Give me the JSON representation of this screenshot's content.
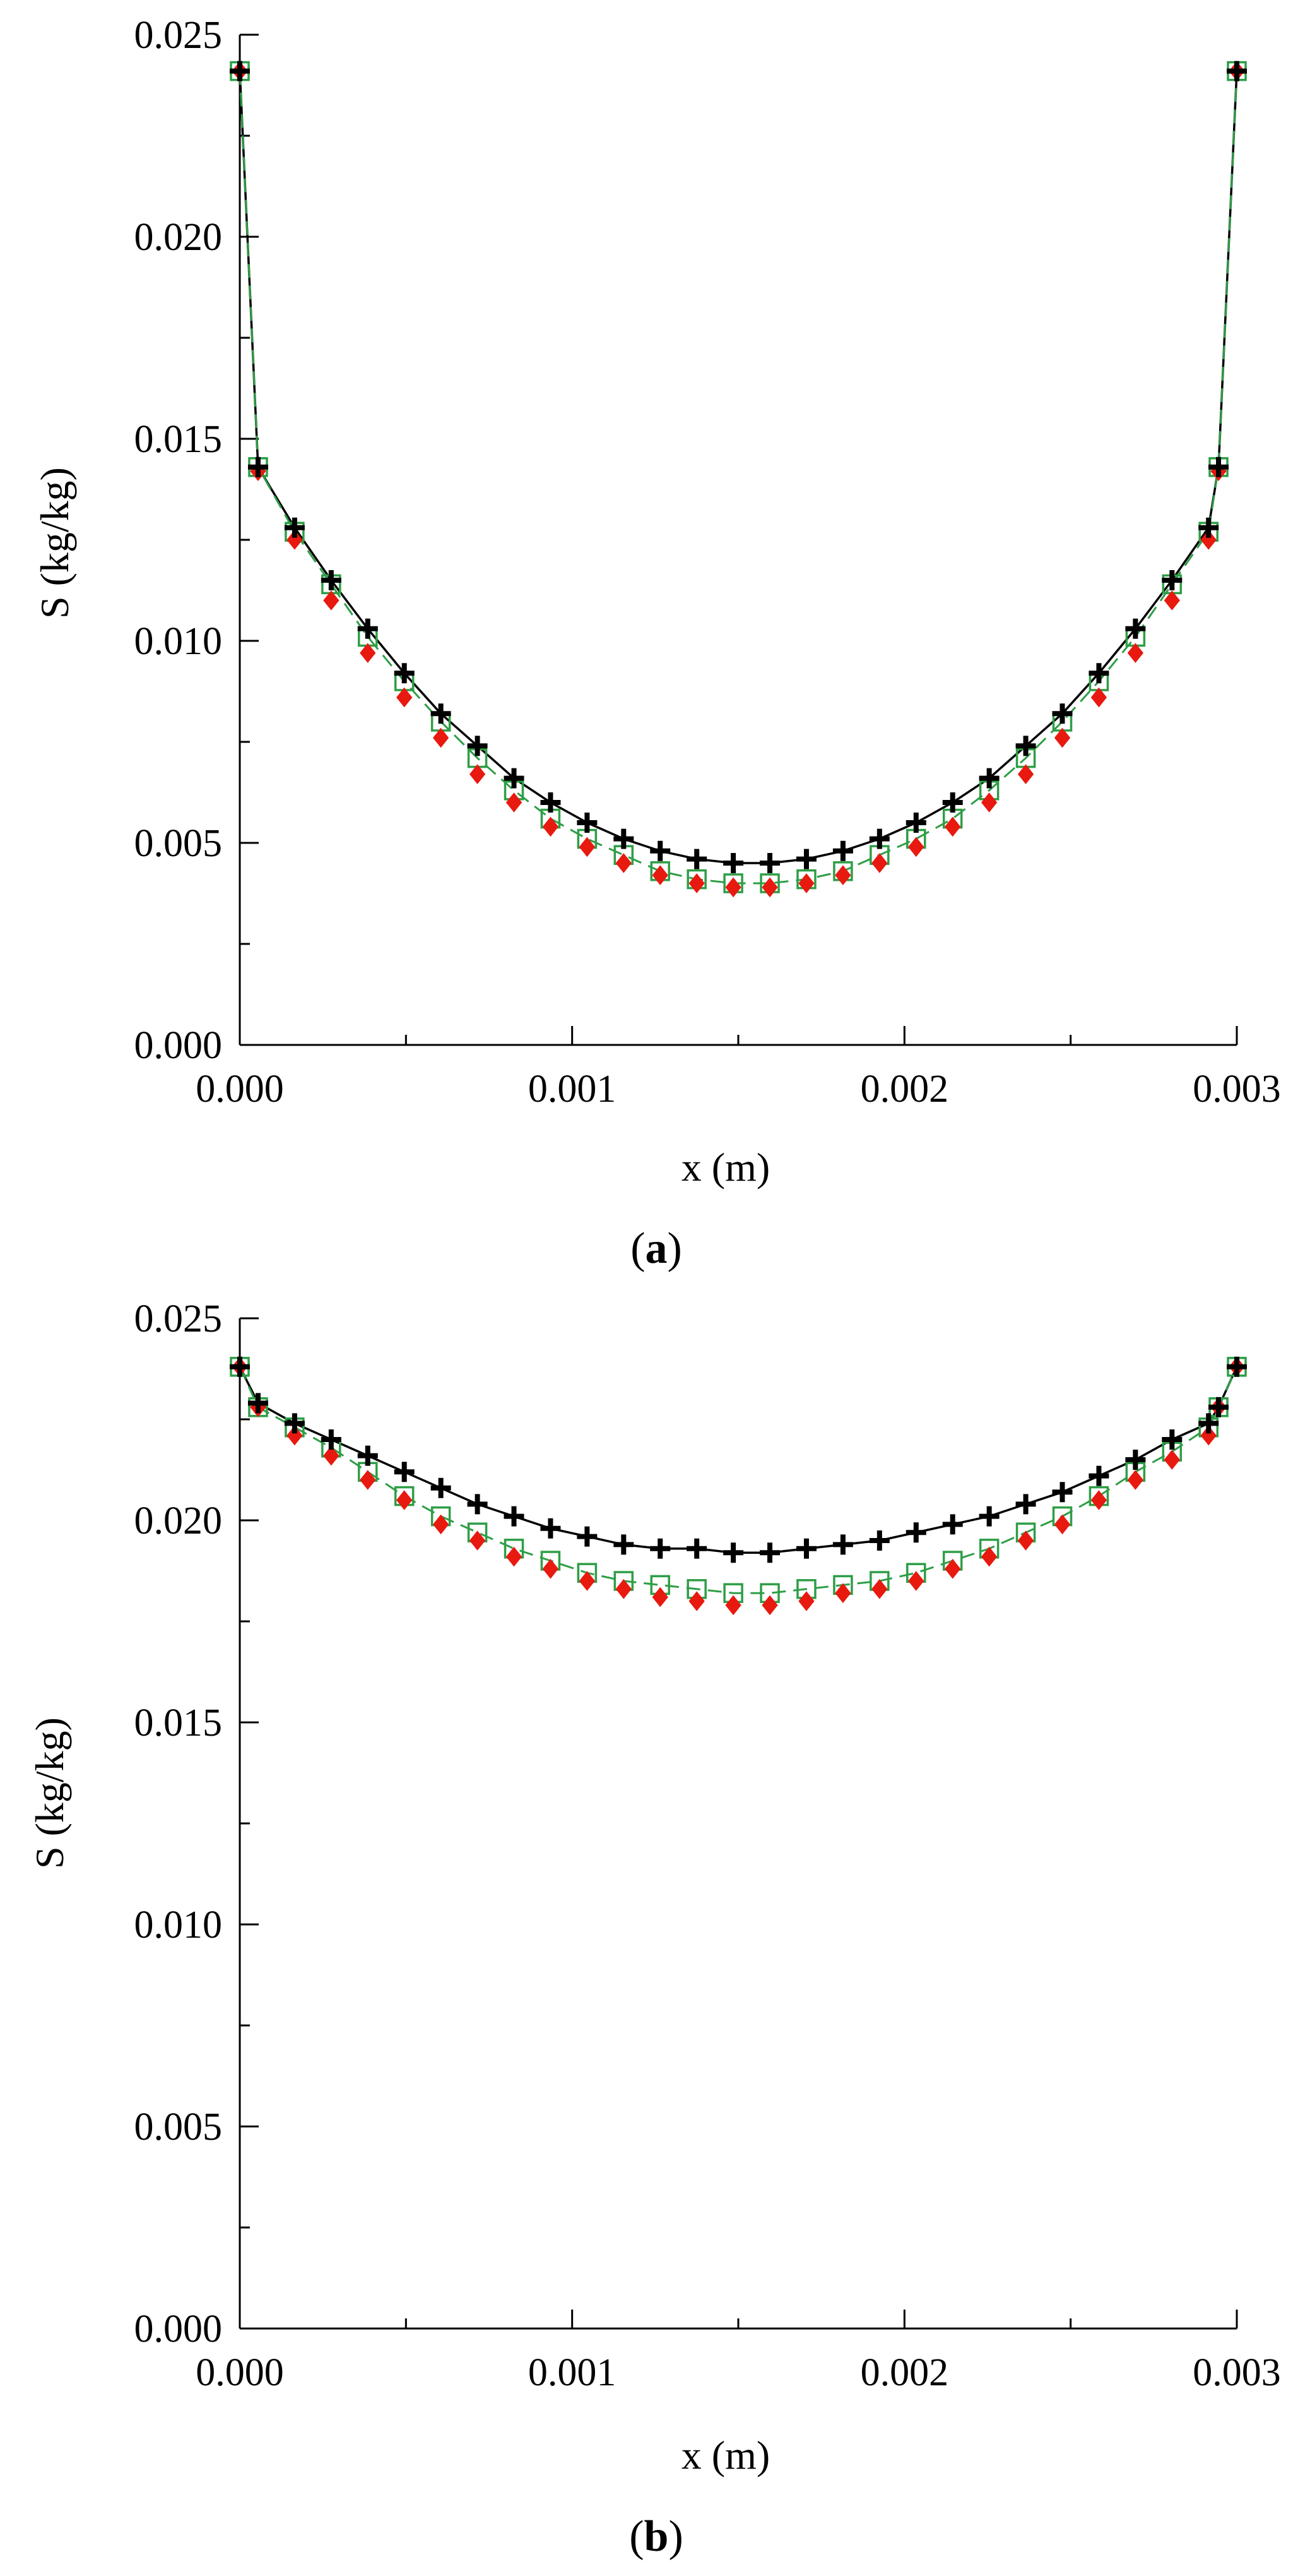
{
  "figure": {
    "panels": [
      {
        "caption_open": "(",
        "caption_letter": "a",
        "caption_close": ")"
      },
      {
        "caption_open": "(",
        "caption_letter": "b",
        "caption_close": ")"
      }
    ]
  },
  "colors": {
    "black_series": "#000000",
    "green_series": "#2e9e46",
    "red_series": "#e8190f",
    "axis": "#000000"
  },
  "chart_data": [
    {
      "type": "line",
      "panel": "a",
      "xlabel": "x (m)",
      "ylabel": "S (kg/kg)",
      "xlim": [
        0,
        0.003
      ],
      "ylim": [
        0,
        0.025
      ],
      "xticks": [
        {
          "value": 0,
          "label": "0.000"
        },
        {
          "value": 0.001,
          "label": "0.001"
        },
        {
          "value": 0.002,
          "label": "0.002"
        },
        {
          "value": 0.003,
          "label": "0.003"
        }
      ],
      "yticks": [
        {
          "value": 0,
          "label": "0.000"
        },
        {
          "value": 0.005,
          "label": "0.005"
        },
        {
          "value": 0.01,
          "label": "0.010"
        },
        {
          "value": 0.015,
          "label": "0.015"
        },
        {
          "value": 0.02,
          "label": "0.020"
        },
        {
          "value": 0.025,
          "label": "0.025"
        }
      ],
      "x": [
        0,
        5.5e-05,
        0.000165,
        0.000275,
        0.000385,
        0.000495,
        0.000605,
        0.000715,
        0.000825,
        0.000935,
        0.001045,
        0.001155,
        0.001265,
        0.001375,
        0.001485,
        0.001595,
        0.001705,
        0.001815,
        0.001925,
        0.002035,
        0.002145,
        0.002255,
        0.002365,
        0.002475,
        0.002585,
        0.002695,
        0.002805,
        0.002915,
        0.002945,
        0.003
      ],
      "series": [
        {
          "name": "black-plus",
          "marker": "plus",
          "line": "solid",
          "values": [
            0.0241,
            0.0143,
            0.0128,
            0.0115,
            0.0103,
            0.0092,
            0.0082,
            0.0074,
            0.0066,
            0.006,
            0.0055,
            0.0051,
            0.0048,
            0.0046,
            0.0045,
            0.0045,
            0.0046,
            0.0048,
            0.0051,
            0.0055,
            0.006,
            0.0066,
            0.0074,
            0.0082,
            0.0092,
            0.0103,
            0.0115,
            0.0128,
            0.0143,
            0.0241
          ]
        },
        {
          "name": "green-square",
          "marker": "square",
          "line": "dashed",
          "values": [
            0.0241,
            0.0143,
            0.0127,
            0.0114,
            0.0101,
            0.009,
            0.008,
            0.0071,
            0.0063,
            0.0056,
            0.0051,
            0.0047,
            0.0043,
            0.0041,
            0.004,
            0.004,
            0.0041,
            0.0043,
            0.0047,
            0.0051,
            0.0056,
            0.0063,
            0.0071,
            0.008,
            0.009,
            0.0101,
            0.0114,
            0.0127,
            0.0143,
            0.0241
          ]
        },
        {
          "name": "red-diamond",
          "marker": "diamond",
          "line": "none",
          "values": [
            0.0241,
            0.0142,
            0.0125,
            0.011,
            0.0097,
            0.0086,
            0.0076,
            0.0067,
            0.006,
            0.0054,
            0.0049,
            0.0045,
            0.0042,
            0.004,
            0.0039,
            0.0039,
            0.004,
            0.0042,
            0.0045,
            0.0049,
            0.0054,
            0.006,
            0.0067,
            0.0076,
            0.0086,
            0.0097,
            0.011,
            0.0125,
            0.0142,
            0.0241
          ]
        }
      ]
    },
    {
      "type": "line",
      "panel": "b",
      "xlabel": "x (m)",
      "ylabel": "S (kg/kg)",
      "xlim": [
        0,
        0.003
      ],
      "ylim": [
        0,
        0.025
      ],
      "xticks": [
        {
          "value": 0,
          "label": "0.000"
        },
        {
          "value": 0.001,
          "label": "0.001"
        },
        {
          "value": 0.002,
          "label": "0.002"
        },
        {
          "value": 0.003,
          "label": "0.003"
        }
      ],
      "yticks": [
        {
          "value": 0,
          "label": "0.000"
        },
        {
          "value": 0.005,
          "label": "0.005"
        },
        {
          "value": 0.01,
          "label": "0.010"
        },
        {
          "value": 0.015,
          "label": "0.015"
        },
        {
          "value": 0.02,
          "label": "0.020"
        },
        {
          "value": 0.025,
          "label": "0.025"
        }
      ],
      "x": [
        0,
        5.5e-05,
        0.000165,
        0.000275,
        0.000385,
        0.000495,
        0.000605,
        0.000715,
        0.000825,
        0.000935,
        0.001045,
        0.001155,
        0.001265,
        0.001375,
        0.001485,
        0.001595,
        0.001705,
        0.001815,
        0.001925,
        0.002035,
        0.002145,
        0.002255,
        0.002365,
        0.002475,
        0.002585,
        0.002695,
        0.002805,
        0.002915,
        0.002945,
        0.003
      ],
      "series": [
        {
          "name": "black-plus",
          "marker": "plus",
          "line": "solid",
          "values": [
            0.0238,
            0.0229,
            0.0224,
            0.022,
            0.0216,
            0.0212,
            0.0208,
            0.0204,
            0.0201,
            0.0198,
            0.0196,
            0.0194,
            0.0193,
            0.0193,
            0.0192,
            0.0192,
            0.0193,
            0.0194,
            0.0195,
            0.0197,
            0.0199,
            0.0201,
            0.0204,
            0.0207,
            0.0211,
            0.0215,
            0.022,
            0.0224,
            0.0228,
            0.0238
          ]
        },
        {
          "name": "green-square",
          "marker": "square",
          "line": "dashed",
          "values": [
            0.0238,
            0.0228,
            0.0223,
            0.0218,
            0.0212,
            0.0206,
            0.0201,
            0.0197,
            0.0193,
            0.019,
            0.0187,
            0.0185,
            0.0184,
            0.0183,
            0.0182,
            0.0182,
            0.0183,
            0.0184,
            0.0185,
            0.0187,
            0.019,
            0.0193,
            0.0197,
            0.0201,
            0.0206,
            0.0212,
            0.0217,
            0.0223,
            0.0228,
            0.0238
          ]
        },
        {
          "name": "red-diamond",
          "marker": "diamond",
          "line": "none",
          "values": [
            0.0238,
            0.0228,
            0.0221,
            0.0216,
            0.021,
            0.0205,
            0.0199,
            0.0195,
            0.0191,
            0.0188,
            0.0185,
            0.0183,
            0.0181,
            0.018,
            0.0179,
            0.0179,
            0.018,
            0.0182,
            0.0183,
            0.0185,
            0.0188,
            0.0191,
            0.0195,
            0.0199,
            0.0205,
            0.021,
            0.0215,
            0.0221,
            0.0228,
            0.0238
          ]
        }
      ]
    }
  ]
}
